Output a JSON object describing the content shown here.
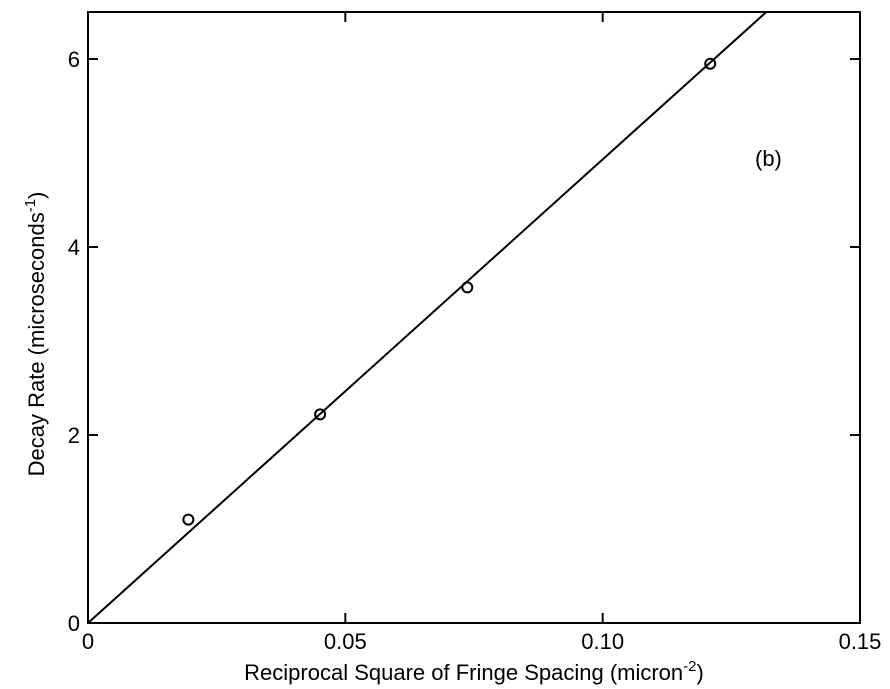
{
  "chart_data": {
    "type": "scatter",
    "xlabel": "Reciprocal Square of Fringe Spacing (micron",
    "xlabel_sup": "-2",
    "xlabel_end": ")",
    "ylabel": "Decay Rate (microseconds",
    "ylabel_sup": "-1",
    "ylabel_end": ")",
    "annotation": "(b)",
    "xlim": [
      0,
      0.15
    ],
    "ylim": [
      0,
      6.5
    ],
    "x_ticks": [
      0,
      0.05,
      0.1,
      0.15
    ],
    "x_tick_labels": [
      "0",
      "0.05",
      "0.10",
      "0.15"
    ],
    "y_ticks": [
      0,
      2,
      4,
      6
    ],
    "y_tick_labels": [
      "0",
      "2",
      "4",
      "6"
    ],
    "grid": false,
    "series": [
      {
        "marker": "circle-open",
        "x": [
          0.0195,
          0.0451,
          0.0737,
          0.1209
        ],
        "y": [
          1.1,
          2.22,
          3.57,
          5.95
        ]
      }
    ],
    "fit_line": {
      "x": [
        0,
        0.1318
      ],
      "y": [
        0,
        6.5
      ]
    },
    "colors": {
      "line": "#000000",
      "marker": "#000000",
      "background": "#ffffff"
    }
  }
}
